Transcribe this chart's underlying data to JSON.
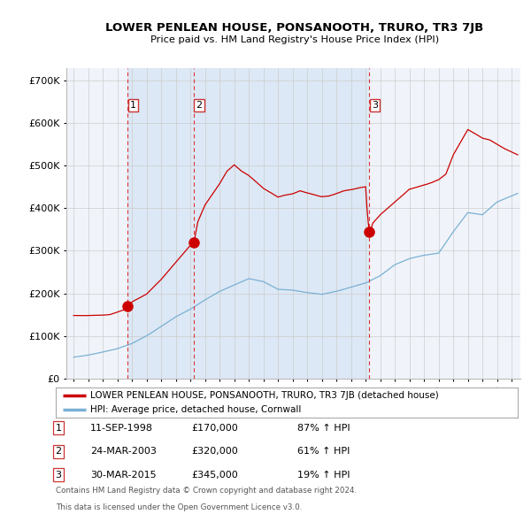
{
  "title": "LOWER PENLEAN HOUSE, PONSANOOTH, TRURO, TR3 7JB",
  "subtitle": "Price paid vs. HM Land Registry's House Price Index (HPI)",
  "legend_label_red": "LOWER PENLEAN HOUSE, PONSANOOTH, TRURO, TR3 7JB (detached house)",
  "legend_label_blue": "HPI: Average price, detached house, Cornwall",
  "footer1": "Contains HM Land Registry data © Crown copyright and database right 2024.",
  "footer2": "This data is licensed under the Open Government Licence v3.0.",
  "transactions": [
    {
      "num": 1,
      "date": "11-SEP-1998",
      "price": "£170,000",
      "hpi": "87% ↑ HPI",
      "year": 1998.7
    },
    {
      "num": 2,
      "date": "24-MAR-2003",
      "price": "£320,000",
      "hpi": "61% ↑ HPI",
      "year": 2003.23
    },
    {
      "num": 3,
      "date": "30-MAR-2015",
      "price": "£345,000",
      "hpi": "19% ↑ HPI",
      "year": 2015.25
    }
  ],
  "transaction_prices": [
    170000,
    320000,
    345000
  ],
  "ylim": [
    0,
    730000
  ],
  "yticks": [
    0,
    100000,
    200000,
    300000,
    400000,
    500000,
    600000,
    700000
  ],
  "ytick_labels": [
    "£0",
    "£100K",
    "£200K",
    "£300K",
    "£400K",
    "£500K",
    "£600K",
    "£700K"
  ],
  "background_color": "#ffffff",
  "chart_bg_color": "#f0f4fa",
  "shade_color": "#dce8f5",
  "grid_color": "#cccccc",
  "red_line_color": "#cc0000",
  "blue_line_color": "#7ab0d4",
  "vline_color": "#dd3333",
  "num_label_border": "#cc3333"
}
